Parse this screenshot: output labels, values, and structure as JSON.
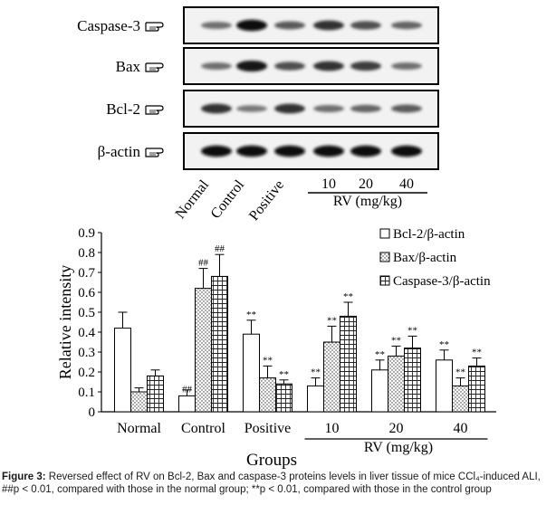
{
  "blot": {
    "proteins": [
      {
        "label": "Caspase-3",
        "intensities": [
          0.45,
          0.95,
          0.55,
          0.75,
          0.6,
          0.5
        ]
      },
      {
        "label": "Bax",
        "intensities": [
          0.45,
          0.9,
          0.6,
          0.75,
          0.7,
          0.45
        ]
      },
      {
        "label": "Bcl-2",
        "intensities": [
          0.75,
          0.4,
          0.75,
          0.45,
          0.5,
          0.55
        ]
      },
      {
        "label": "β-actin",
        "intensities": [
          0.95,
          0.95,
          0.95,
          0.95,
          0.95,
          0.95
        ]
      }
    ],
    "lanes": [
      "Normal",
      "Control",
      "Positive",
      "10",
      "20",
      "40"
    ],
    "rv_label": "RV (mg/kg)",
    "pointer_icon": "pointing-hand-icon"
  },
  "chart_data": {
    "type": "bar",
    "categories": [
      "Normal",
      "Control",
      "Positive",
      "10",
      "20",
      "40"
    ],
    "series": [
      {
        "name": "Bcl-2/β-actin",
        "pattern": "blank",
        "values": [
          0.42,
          0.08,
          0.39,
          0.13,
          0.21,
          0.26
        ],
        "errors": [
          0.08,
          0.03,
          0.07,
          0.04,
          0.05,
          0.05
        ],
        "marks": [
          "",
          "##",
          "**",
          "**",
          "**",
          "**"
        ]
      },
      {
        "name": "Bax/β-actin",
        "pattern": "dots",
        "values": [
          0.1,
          0.62,
          0.17,
          0.35,
          0.28,
          0.13
        ],
        "errors": [
          0.02,
          0.1,
          0.06,
          0.08,
          0.05,
          0.04
        ],
        "marks": [
          "",
          "##",
          "**",
          "**",
          "**",
          "**"
        ]
      },
      {
        "name": "Caspase-3/β-actin",
        "pattern": "grid",
        "values": [
          0.18,
          0.68,
          0.14,
          0.48,
          0.32,
          0.23
        ],
        "errors": [
          0.03,
          0.11,
          0.02,
          0.07,
          0.06,
          0.04
        ],
        "marks": [
          "",
          "##",
          "**",
          "**",
          "**",
          "**"
        ]
      }
    ],
    "ylabel": "Relative intensity",
    "xlabel": "Groups",
    "group_label": "RV (mg/kg)",
    "ylim": [
      0,
      0.9
    ],
    "yticks": [
      "0",
      "0.1",
      "0.2",
      "0.3",
      "0.4",
      "0.5",
      "0.6",
      "0.7",
      "0.8",
      "0.9"
    ],
    "legend_position": "top-right",
    "grid": false
  },
  "caption": {
    "label": "Figure 3:",
    "text": "Reversed effect of RV on Bcl-2, Bax and caspase-3 proteins levels in liver tissue of mice CCl₄-induced ALI, ##p < 0.01, compared with those in the normal group; **p < 0.01, compared with those in the control group"
  }
}
